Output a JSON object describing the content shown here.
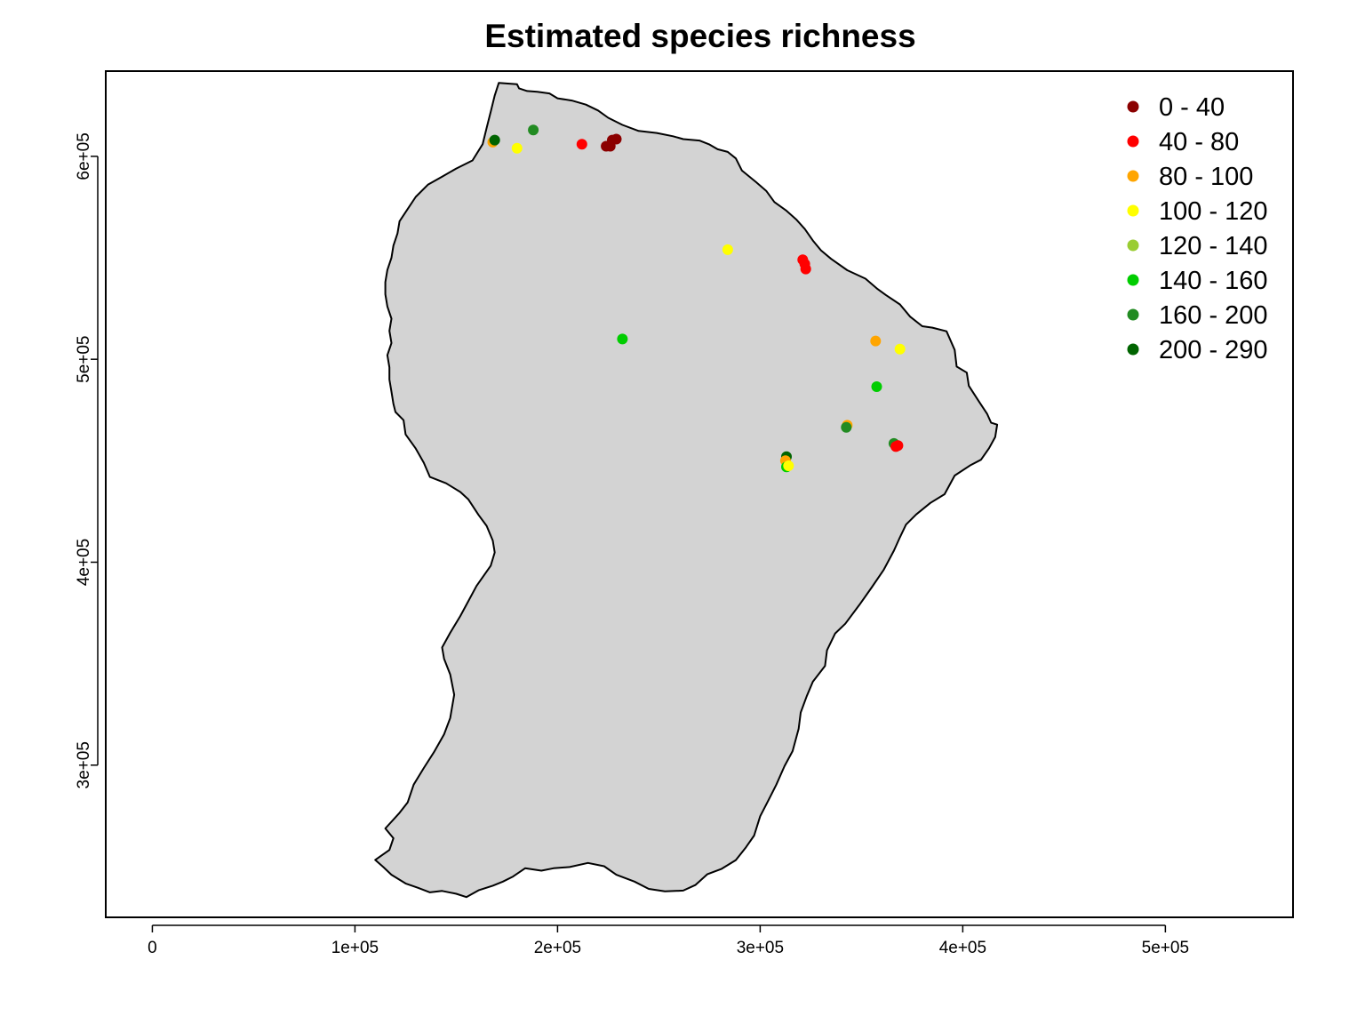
{
  "title": "Estimated species richness",
  "chart_data": {
    "type": "scatter",
    "title": "Estimated species richness",
    "xlabel": "",
    "ylabel": "",
    "xlim": [
      -23000,
      563000
    ],
    "ylim": [
      225000,
      642000
    ],
    "x_ticks": [
      {
        "value": 0,
        "label": "0"
      },
      {
        "value": 100000,
        "label": "1e+05"
      },
      {
        "value": 200000,
        "label": "2e+05"
      },
      {
        "value": 300000,
        "label": "3e+05"
      },
      {
        "value": 400000,
        "label": "4e+05"
      },
      {
        "value": 500000,
        "label": "5e+05"
      }
    ],
    "y_ticks": [
      {
        "value": 300000,
        "label": "3e+05"
      },
      {
        "value": 400000,
        "label": "4e+05"
      },
      {
        "value": 500000,
        "label": "5e+05"
      },
      {
        "value": 600000,
        "label": "6e+05"
      }
    ],
    "grid": false,
    "legend_position": "top-right",
    "land_color": "#d3d3d3",
    "classes": [
      {
        "label": "0 - 40",
        "color": "#8b0000"
      },
      {
        "label": "40 - 80",
        "color": "#ff0000"
      },
      {
        "label": "80 - 100",
        "color": "#ffa500"
      },
      {
        "label": "100 - 120",
        "color": "#ffff00"
      },
      {
        "label": "120 - 140",
        "color": "#9acd32"
      },
      {
        "label": "140 - 160",
        "color": "#00cd00"
      },
      {
        "label": "160 - 200",
        "color": "#228b22"
      },
      {
        "label": "200 - 290",
        "color": "#006400"
      }
    ],
    "points": [
      {
        "x": 168000,
        "y": 607000,
        "class": 2
      },
      {
        "x": 169000,
        "y": 608000,
        "class": 7
      },
      {
        "x": 180000,
        "y": 604000,
        "class": 3
      },
      {
        "x": 188000,
        "y": 613000,
        "class": 6
      },
      {
        "x": 212000,
        "y": 606000,
        "class": 1
      },
      {
        "x": 224000,
        "y": 605000,
        "class": 0
      },
      {
        "x": 226000,
        "y": 605000,
        "class": 0
      },
      {
        "x": 227000,
        "y": 608000,
        "class": 0
      },
      {
        "x": 229000,
        "y": 608500,
        "class": 0
      },
      {
        "x": 284000,
        "y": 554000,
        "class": 3
      },
      {
        "x": 321000,
        "y": 549000,
        "class": 1
      },
      {
        "x": 322000,
        "y": 547000,
        "class": 1
      },
      {
        "x": 322500,
        "y": 544500,
        "class": 1
      },
      {
        "x": 232000,
        "y": 510000,
        "class": 5
      },
      {
        "x": 357000,
        "y": 509000,
        "class": 2
      },
      {
        "x": 369000,
        "y": 505000,
        "class": 3
      },
      {
        "x": 357500,
        "y": 486500,
        "class": 5
      },
      {
        "x": 343000,
        "y": 467500,
        "class": 2
      },
      {
        "x": 342500,
        "y": 466500,
        "class": 6
      },
      {
        "x": 366000,
        "y": 458500,
        "class": 6
      },
      {
        "x": 367000,
        "y": 457000,
        "class": 1
      },
      {
        "x": 368000,
        "y": 457500,
        "class": 1
      },
      {
        "x": 313000,
        "y": 452000,
        "class": 7
      },
      {
        "x": 312500,
        "y": 450000,
        "class": 2
      },
      {
        "x": 313000,
        "y": 447000,
        "class": 5
      },
      {
        "x": 314000,
        "y": 447500,
        "class": 3
      }
    ],
    "outline": [
      [
        171000,
        636200
      ],
      [
        180000,
        635500
      ],
      [
        181000,
        633500
      ],
      [
        185000,
        632200
      ],
      [
        190000,
        631800
      ],
      [
        196000,
        631000
      ],
      [
        200000,
        628600
      ],
      [
        207000,
        627500
      ],
      [
        214000,
        625500
      ],
      [
        220000,
        622600
      ],
      [
        225000,
        619000
      ],
      [
        232000,
        615500
      ],
      [
        240000,
        612500
      ],
      [
        249000,
        611500
      ],
      [
        257000,
        609900
      ],
      [
        262000,
        608500
      ],
      [
        270000,
        607800
      ],
      [
        275000,
        605800
      ],
      [
        279000,
        603500
      ],
      [
        284000,
        602200
      ],
      [
        288000,
        599000
      ],
      [
        291000,
        593000
      ],
      [
        298000,
        587300
      ],
      [
        303000,
        583000
      ],
      [
        307000,
        577500
      ],
      [
        313000,
        573200
      ],
      [
        318000,
        568700
      ],
      [
        322000,
        564200
      ],
      [
        326000,
        558500
      ],
      [
        330000,
        553700
      ],
      [
        335000,
        549500
      ],
      [
        343000,
        543900
      ],
      [
        352000,
        539700
      ],
      [
        358000,
        534600
      ],
      [
        362000,
        531700
      ],
      [
        369000,
        527000
      ],
      [
        374000,
        521000
      ],
      [
        380000,
        516300
      ],
      [
        385000,
        515600
      ],
      [
        392000,
        513800
      ],
      [
        396000,
        504600
      ],
      [
        397000,
        496400
      ],
      [
        402000,
        493400
      ],
      [
        403000,
        486900
      ],
      [
        408000,
        479200
      ],
      [
        412000,
        473200
      ],
      [
        414000,
        468700
      ],
      [
        417000,
        467800
      ],
      [
        416000,
        461700
      ],
      [
        413000,
        456200
      ],
      [
        409000,
        450500
      ],
      [
        404000,
        447900
      ],
      [
        396000,
        442700
      ],
      [
        391000,
        433500
      ],
      [
        384000,
        429200
      ],
      [
        377000,
        423500
      ],
      [
        372000,
        418500
      ],
      [
        369000,
        412300
      ],
      [
        366000,
        405700
      ],
      [
        361000,
        396300
      ],
      [
        355000,
        387500
      ],
      [
        349000,
        379000
      ],
      [
        342000,
        369700
      ],
      [
        337000,
        364900
      ],
      [
        333000,
        356600
      ],
      [
        332000,
        348900
      ],
      [
        326000,
        341100
      ],
      [
        323000,
        334000
      ],
      [
        320000,
        325900
      ],
      [
        319000,
        317900
      ],
      [
        316000,
        306900
      ],
      [
        312000,
        299500
      ],
      [
        308000,
        290400
      ],
      [
        304000,
        282500
      ],
      [
        300000,
        274800
      ],
      [
        297000,
        265300
      ],
      [
        293000,
        259500
      ],
      [
        288000,
        253200
      ],
      [
        281000,
        248900
      ],
      [
        274000,
        246300
      ],
      [
        268000,
        240900
      ],
      [
        262000,
        238200
      ],
      [
        253000,
        237800
      ],
      [
        245000,
        239000
      ],
      [
        238000,
        242600
      ],
      [
        229000,
        246000
      ],
      [
        223000,
        250200
      ],
      [
        215000,
        251800
      ],
      [
        206000,
        249800
      ],
      [
        198000,
        249200
      ],
      [
        192000,
        248000
      ],
      [
        184000,
        249200
      ],
      [
        178000,
        245100
      ],
      [
        173000,
        242600
      ],
      [
        168000,
        240600
      ],
      [
        161000,
        238300
      ],
      [
        155000,
        235000
      ],
      [
        150000,
        236600
      ],
      [
        143000,
        238000
      ],
      [
        137000,
        237300
      ],
      [
        131000,
        239600
      ],
      [
        125000,
        241700
      ],
      [
        118000,
        246000
      ],
      [
        114000,
        249800
      ],
      [
        110000,
        253300
      ],
      [
        117000,
        258200
      ],
      [
        119000,
        264000
      ],
      [
        115000,
        268800
      ],
      [
        122000,
        276500
      ],
      [
        126000,
        281600
      ],
      [
        129000,
        290400
      ],
      [
        134000,
        298600
      ],
      [
        139000,
        306400
      ],
      [
        144000,
        315200
      ],
      [
        147000,
        323200
      ],
      [
        149000,
        334700
      ],
      [
        147000,
        344700
      ],
      [
        144000,
        352400
      ],
      [
        143000,
        358000
      ],
      [
        147000,
        365200
      ],
      [
        152000,
        373500
      ],
      [
        156000,
        380900
      ],
      [
        160000,
        388300
      ],
      [
        167000,
        398300
      ],
      [
        169000,
        404800
      ],
      [
        168000,
        410700
      ],
      [
        165000,
        417900
      ],
      [
        161000,
        423300
      ],
      [
        156000,
        430900
      ],
      [
        152000,
        434600
      ],
      [
        145000,
        438900
      ],
      [
        137000,
        442000
      ],
      [
        134000,
        449000
      ],
      [
        130000,
        456000
      ],
      [
        125000,
        463000
      ],
      [
        124000,
        470000
      ],
      [
        120000,
        474000
      ],
      [
        119000,
        478000
      ],
      [
        118000,
        484000
      ],
      [
        117000,
        490000
      ],
      [
        117000,
        496000
      ],
      [
        116000,
        502000
      ],
      [
        118000,
        508000
      ],
      [
        117000,
        514000
      ],
      [
        118000,
        520000
      ],
      [
        116000,
        526000
      ],
      [
        115000,
        532000
      ],
      [
        115000,
        538000
      ],
      [
        116000,
        544000
      ],
      [
        118000,
        550000
      ],
      [
        119000,
        556000
      ],
      [
        121000,
        562000
      ],
      [
        122000,
        568000
      ],
      [
        126000,
        574000
      ],
      [
        130000,
        580000
      ],
      [
        136000,
        586000
      ],
      [
        143000,
        590000
      ],
      [
        150000,
        594000
      ],
      [
        158000,
        598000
      ],
      [
        163000,
        606000
      ],
      [
        165000,
        614000
      ],
      [
        167000,
        622000
      ],
      [
        169000,
        630000
      ]
    ]
  }
}
